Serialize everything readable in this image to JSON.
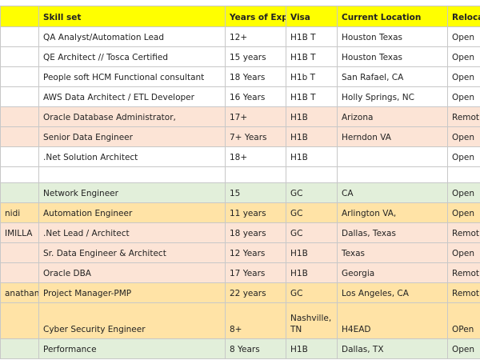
{
  "table": {
    "header": [
      null,
      "Skill set",
      "Years of Exp.",
      "Visa",
      "Current Location",
      "Reloca"
    ],
    "header_color": "#ffff00",
    "rows": [
      [
        null,
        "QA Analyst/Automation Lead",
        "12+",
        "H1B T",
        "Houston Texas",
        "Open"
      ],
      [
        null,
        "QE Architect // Tosca Certified",
        "15 years",
        "H1B T",
        "Houston Texas",
        "Open"
      ],
      [
        null,
        "People soft HCM Functional consultant",
        "18 Years",
        "H1b T",
        "San Rafael, CA",
        "Open"
      ],
      [
        null,
        "AWS Data Architect / ETL Developer",
        "16 Years",
        "H1B T",
        "Holly Springs, NC",
        "Open"
      ],
      [
        null,
        "Oracle Database Administrator,",
        "17+",
        "H1B",
        "Arizona",
        "Remot"
      ],
      [
        null,
        "Senior Data Engineer",
        "7+ Years",
        "H1B",
        "Herndon VA",
        "Open"
      ],
      [
        null,
        ".Net Solution Architect",
        "18+",
        "H1B",
        null,
        "Open"
      ],
      [
        null,
        null,
        null,
        null,
        null,
        null
      ],
      [
        null,
        "Network Engineer",
        "15",
        "GC",
        "CA",
        "Open"
      ],
      [
        "nidi",
        "Automation Engineer",
        "11 years",
        "GC",
        "Arlington VA,",
        "Open"
      ],
      [
        "IMILLA",
        ".Net Lead / Architect",
        "18 years",
        "GC",
        "Dallas, Texas",
        "Remot"
      ],
      [
        null,
        "Sr. Data Engineer & Architect",
        "12 Years",
        "H1B",
        "Texas",
        "Open"
      ],
      [
        null,
        "Oracle DBA",
        "17 Years",
        "H1B",
        "Georgia",
        "Remot"
      ],
      [
        "anathan",
        "Project Manager-PMP",
        "22 years",
        "GC",
        "Los Angeles, CA",
        "Remot"
      ],
      [
        null,
        "Cyber Security Engineer",
        "8+",
        "Nashville, TN",
        "H4EAD",
        "OPen"
      ],
      [
        null,
        "Performance",
        "8 Years",
        "H1B",
        "Dallas, TX",
        "Open"
      ]
    ],
    "row_colors": [
      "#ffffff",
      "#ffffff",
      "#ffffff",
      "#ffffff",
      "#fce4d6",
      "#fce4d6",
      "#ffffff",
      "#ffffff",
      "#e2efda",
      "#ffe3a6",
      "#fce4d6",
      "#fce4d6",
      "#fce4d6",
      "#ffe3a6",
      "#ffe3a6",
      "#e2efda"
    ]
  }
}
